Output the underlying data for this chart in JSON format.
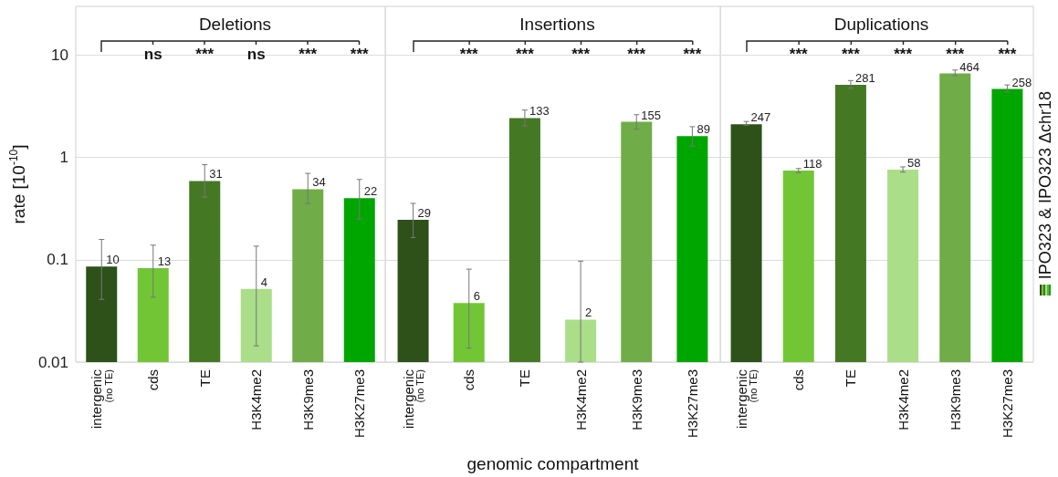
{
  "chart_data": [
    {
      "type": "bar",
      "title": "Deletions",
      "ylabel": "rate [10$^{-10}$]",
      "categories": [
        "intergenic\n(no TE)",
        "cds",
        "TE",
        "H3K4me2",
        "H3K9me3",
        "H3K27me3"
      ],
      "series": [
        {
          "colors": [
            "#2d5119",
            "#72c636",
            "#457823",
            "#aade88",
            "#70ac47",
            "#00a600"
          ],
          "values": [
            0.086,
            0.083,
            0.59,
            0.052,
            0.49,
            0.4
          ],
          "errors": [
            [
              0.041,
              0.158
            ],
            [
              0.043,
              0.139
            ],
            [
              0.41,
              0.85
            ],
            [
              0.0144,
              0.136
            ],
            [
              0.355,
              0.7
            ],
            [
              0.25,
              0.61
            ]
          ]
        }
      ],
      "annotations": [
        "ns",
        "***",
        "ns",
        "***",
        "***",
        {
          "text": "10",
          "x": "intergenic\n(no TE)",
          "y": 0.086
        },
        {
          "text": "13",
          "x": "cds",
          "y": 0.083
        },
        {
          "text": "31",
          "x": "TE",
          "y": 0.59
        },
        {
          "text": "4",
          "x": "H3K4me2",
          "y": 0.052
        },
        {
          "text": "34",
          "x": "H3K9me3",
          "y": 0.49
        },
        {
          "text": "22",
          "x": "H3K27me3",
          "y": 0.4
        }
      ],
      "log": "y",
      "ylim": [
        0.01,
        30
      ],
      "yticks": [
        0.01,
        0.1,
        1,
        10
      ],
      "grid": "y"
    },
    {
      "type": "bar",
      "title": "Insertions",
      "xlabel": "genomic compartment",
      "categories": [
        "intergenic\n(no TE)",
        "cds",
        "TE",
        "H3K4me2",
        "H3K9me3",
        "H3K27me3"
      ],
      "series": [
        {
          "colors": [
            "#2d5119",
            "#72c636",
            "#457823",
            "#aade88",
            "#70ac47",
            "#00a600"
          ],
          "values": [
            0.246,
            0.0377,
            2.43,
            0.026,
            2.23,
            1.62
          ],
          "errors": [
            [
              0.165,
              0.356
            ],
            [
              0.0137,
              0.081
            ],
            [
              2.04,
              2.91
            ],
            [
              0.01,
              0.097
            ],
            [
              1.89,
              2.62
            ],
            [
              1.29,
              2.0
            ]
          ]
        }
      ],
      "annotations": [
        "***",
        "***",
        "***",
        "***",
        "***",
        {
          "text": "29",
          "x": "intergenic\n(no TE)",
          "y": 0.246
        },
        {
          "text": "6",
          "x": "cds",
          "y": 0.0377
        },
        {
          "text": "133",
          "x": "TE",
          "y": 2.43
        },
        {
          "text": "2",
          "x": "H3K4me2",
          "y": 0.026
        },
        {
          "text": "155",
          "x": "H3K9me3",
          "y": 2.23
        },
        {
          "text": "89",
          "x": "H3K27me3",
          "y": 1.62
        }
      ],
      "log": "y",
      "ylim": [
        0.01,
        30
      ],
      "yticks": [
        0.01,
        0.1,
        1,
        10
      ],
      "grid": "y",
      "tick_labels": "x"
    },
    {
      "type": "bar",
      "title": "Duplications",
      "categories": [
        "intergenic\n(no TE)",
        "cds",
        "TE",
        "H3K4me2",
        "H3K9me3",
        "H3K27me3"
      ],
      "series": [
        {
          "name": "IPO323 & IPO323 Δchr18",
          "colors": [
            "#2d5119",
            "#72c636",
            "#457823",
            "#aade88",
            "#70ac47",
            "#00a600"
          ],
          "values": [
            2.11,
            0.746,
            5.12,
            0.76,
            6.63,
            4.68
          ],
          "errors": [
            [
              2.07,
              2.25
            ],
            [
              0.71,
              0.78
            ],
            [
              4.74,
              5.65
            ],
            [
              0.72,
              0.81
            ],
            [
              6.31,
              7.16
            ],
            [
              4.36,
              5.12
            ]
          ]
        }
      ],
      "annotations": [
        "***",
        "***",
        "***",
        "***",
        "***",
        {
          "text": "247",
          "x": "intergenic\n(no TE)",
          "y": 2.11
        },
        {
          "text": "118",
          "x": "cds",
          "y": 0.746
        },
        {
          "text": "281",
          "x": "TE",
          "y": 5.12
        },
        {
          "text": "58",
          "x": "H3K4me2",
          "y": 0.76
        },
        {
          "text": "464",
          "x": "H3K9me3",
          "y": 6.63
        },
        {
          "text": "258",
          "x": "H3K27me3",
          "y": 4.68
        }
      ],
      "log": "y",
      "ylim": [
        0.01,
        30
      ],
      "yticks": [
        0.01,
        0.1,
        1,
        10
      ],
      "grid": "y",
      "tick_labels": "x",
      "legend": "right"
    }
  ]
}
